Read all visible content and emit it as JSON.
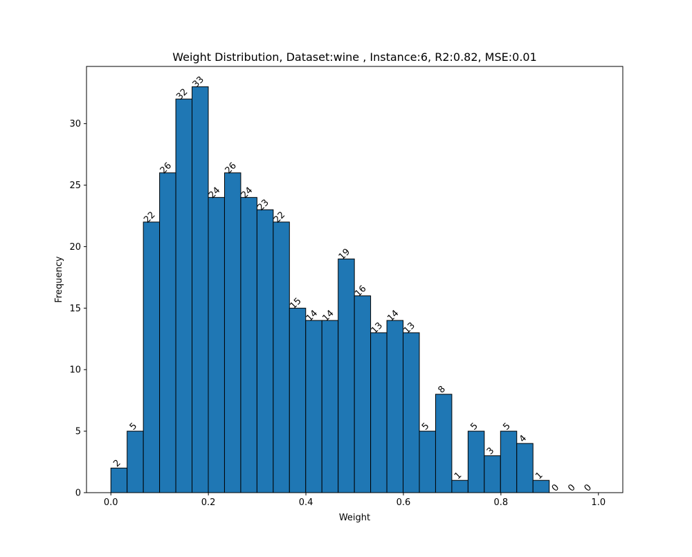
{
  "chart_data": {
    "type": "bar",
    "title": "Weight Distribution, Dataset:wine , Instance:6, R2:0.82, MSE:0.01",
    "xlabel": "Weight",
    "ylabel": "Frequency",
    "xlim": [
      -0.05,
      1.05
    ],
    "ylim": [
      0,
      34.65
    ],
    "bin_start": 0.0,
    "bin_width": 0.0333,
    "values": [
      2,
      5,
      22,
      26,
      32,
      33,
      24,
      26,
      24,
      23,
      22,
      15,
      14,
      14,
      19,
      16,
      13,
      14,
      13,
      5,
      8,
      1,
      5,
      3,
      5,
      4,
      1,
      0,
      0,
      0
    ],
    "value_labels": [
      "2",
      "5",
      "22",
      "26",
      "32",
      "33",
      "24",
      "26",
      "24",
      "23",
      "22",
      "15",
      "14",
      "14",
      "19",
      "16",
      "13",
      "14",
      "13",
      "5",
      "8",
      "1",
      "5",
      "3",
      "5",
      "4",
      "1",
      "0",
      "0",
      "0"
    ],
    "x_ticks": [
      0.0,
      0.2,
      0.4,
      0.6,
      0.8,
      1.0
    ],
    "x_tick_labels": [
      "0.0",
      "0.2",
      "0.4",
      "0.6",
      "0.8",
      "1.0"
    ],
    "y_ticks": [
      0,
      5,
      10,
      15,
      20,
      25,
      30
    ],
    "y_tick_labels": [
      "0",
      "5",
      "10",
      "15",
      "20",
      "25",
      "30"
    ],
    "grid": false,
    "legend": "none",
    "bar_color": "#1f77b4",
    "edge_color": "#000000"
  }
}
